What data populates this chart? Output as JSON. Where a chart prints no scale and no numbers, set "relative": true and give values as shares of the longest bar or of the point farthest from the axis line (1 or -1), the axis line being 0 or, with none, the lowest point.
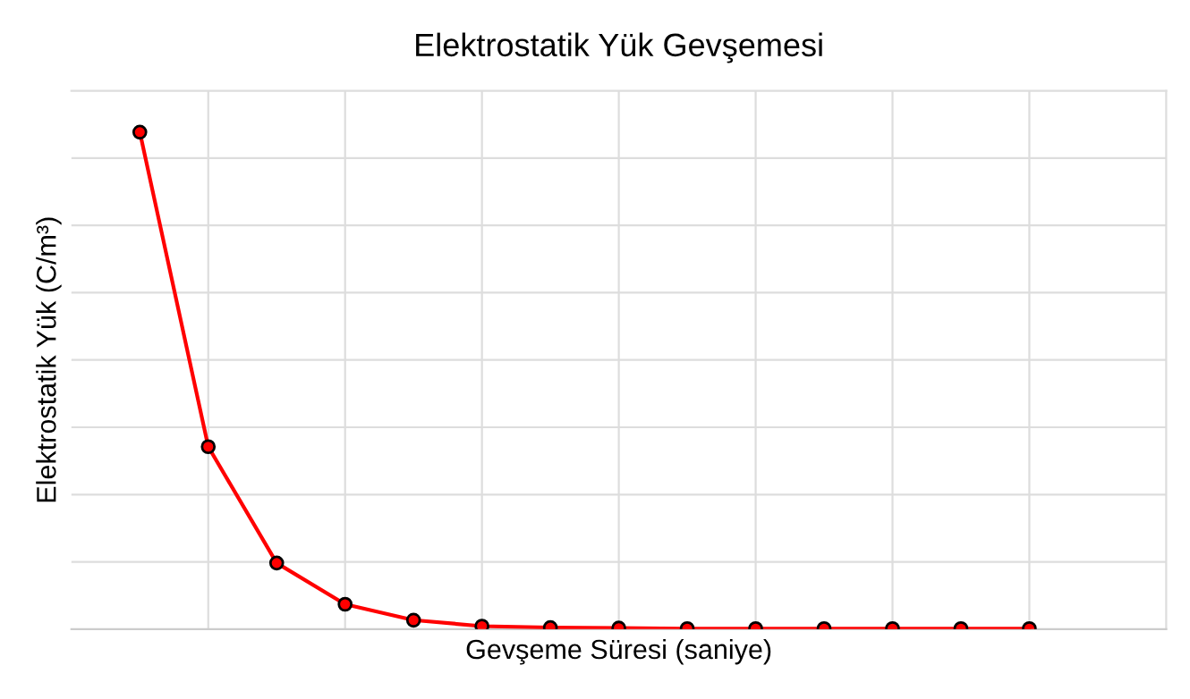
{
  "chart_data": {
    "type": "line",
    "title": "Elektrostatik Yük Gevşemesi",
    "xlabel": "Gevşeme Süresi (saniye)",
    "ylabel": "Elektrostatik Yük (C/m³)",
    "categories": [
      null,
      null,
      null,
      null,
      null,
      null,
      null,
      null,
      null,
      null,
      null,
      null,
      null,
      null
    ],
    "relative": true,
    "grid": true,
    "tick_labels": false,
    "marker": "circle",
    "line_style": "solid",
    "series": [
      {
        "color": "#ff0000",
        "values": [
          1,
          0.367,
          0.133,
          0.05,
          0.018,
          0.006,
          0.003,
          0.002,
          0.001,
          0.001,
          0.001,
          0.001,
          0.001,
          0.001
        ]
      }
    ]
  }
}
